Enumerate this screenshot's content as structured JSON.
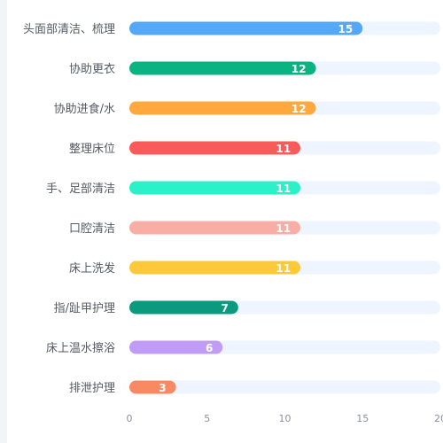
{
  "chart_data": {
    "type": "bar",
    "orientation": "horizontal",
    "categories": [
      "头面部清洁、梳理",
      "协助更衣",
      "协助进食/水",
      "整理床位",
      "手、足部清洁",
      "口腔清洁",
      "床上洗发",
      "指/趾甲护理",
      "床上温水擦浴",
      "排泄护理"
    ],
    "values": [
      15,
      12,
      12,
      11,
      11,
      11,
      11,
      7,
      6,
      3
    ],
    "bar_colors": [
      "#55a7f7",
      "#0bb382",
      "#fea83d",
      "#f95b5b",
      "#2bf1c8",
      "#f8aea5",
      "#fec83b",
      "#0b9a7e",
      "#c19cf7",
      "#f88962"
    ],
    "track_color": "#eef5fe",
    "xlim": [
      0,
      20
    ],
    "x_ticks": [
      "0",
      "5",
      "10",
      "15",
      "20"
    ],
    "grid": false,
    "legend": "none"
  }
}
